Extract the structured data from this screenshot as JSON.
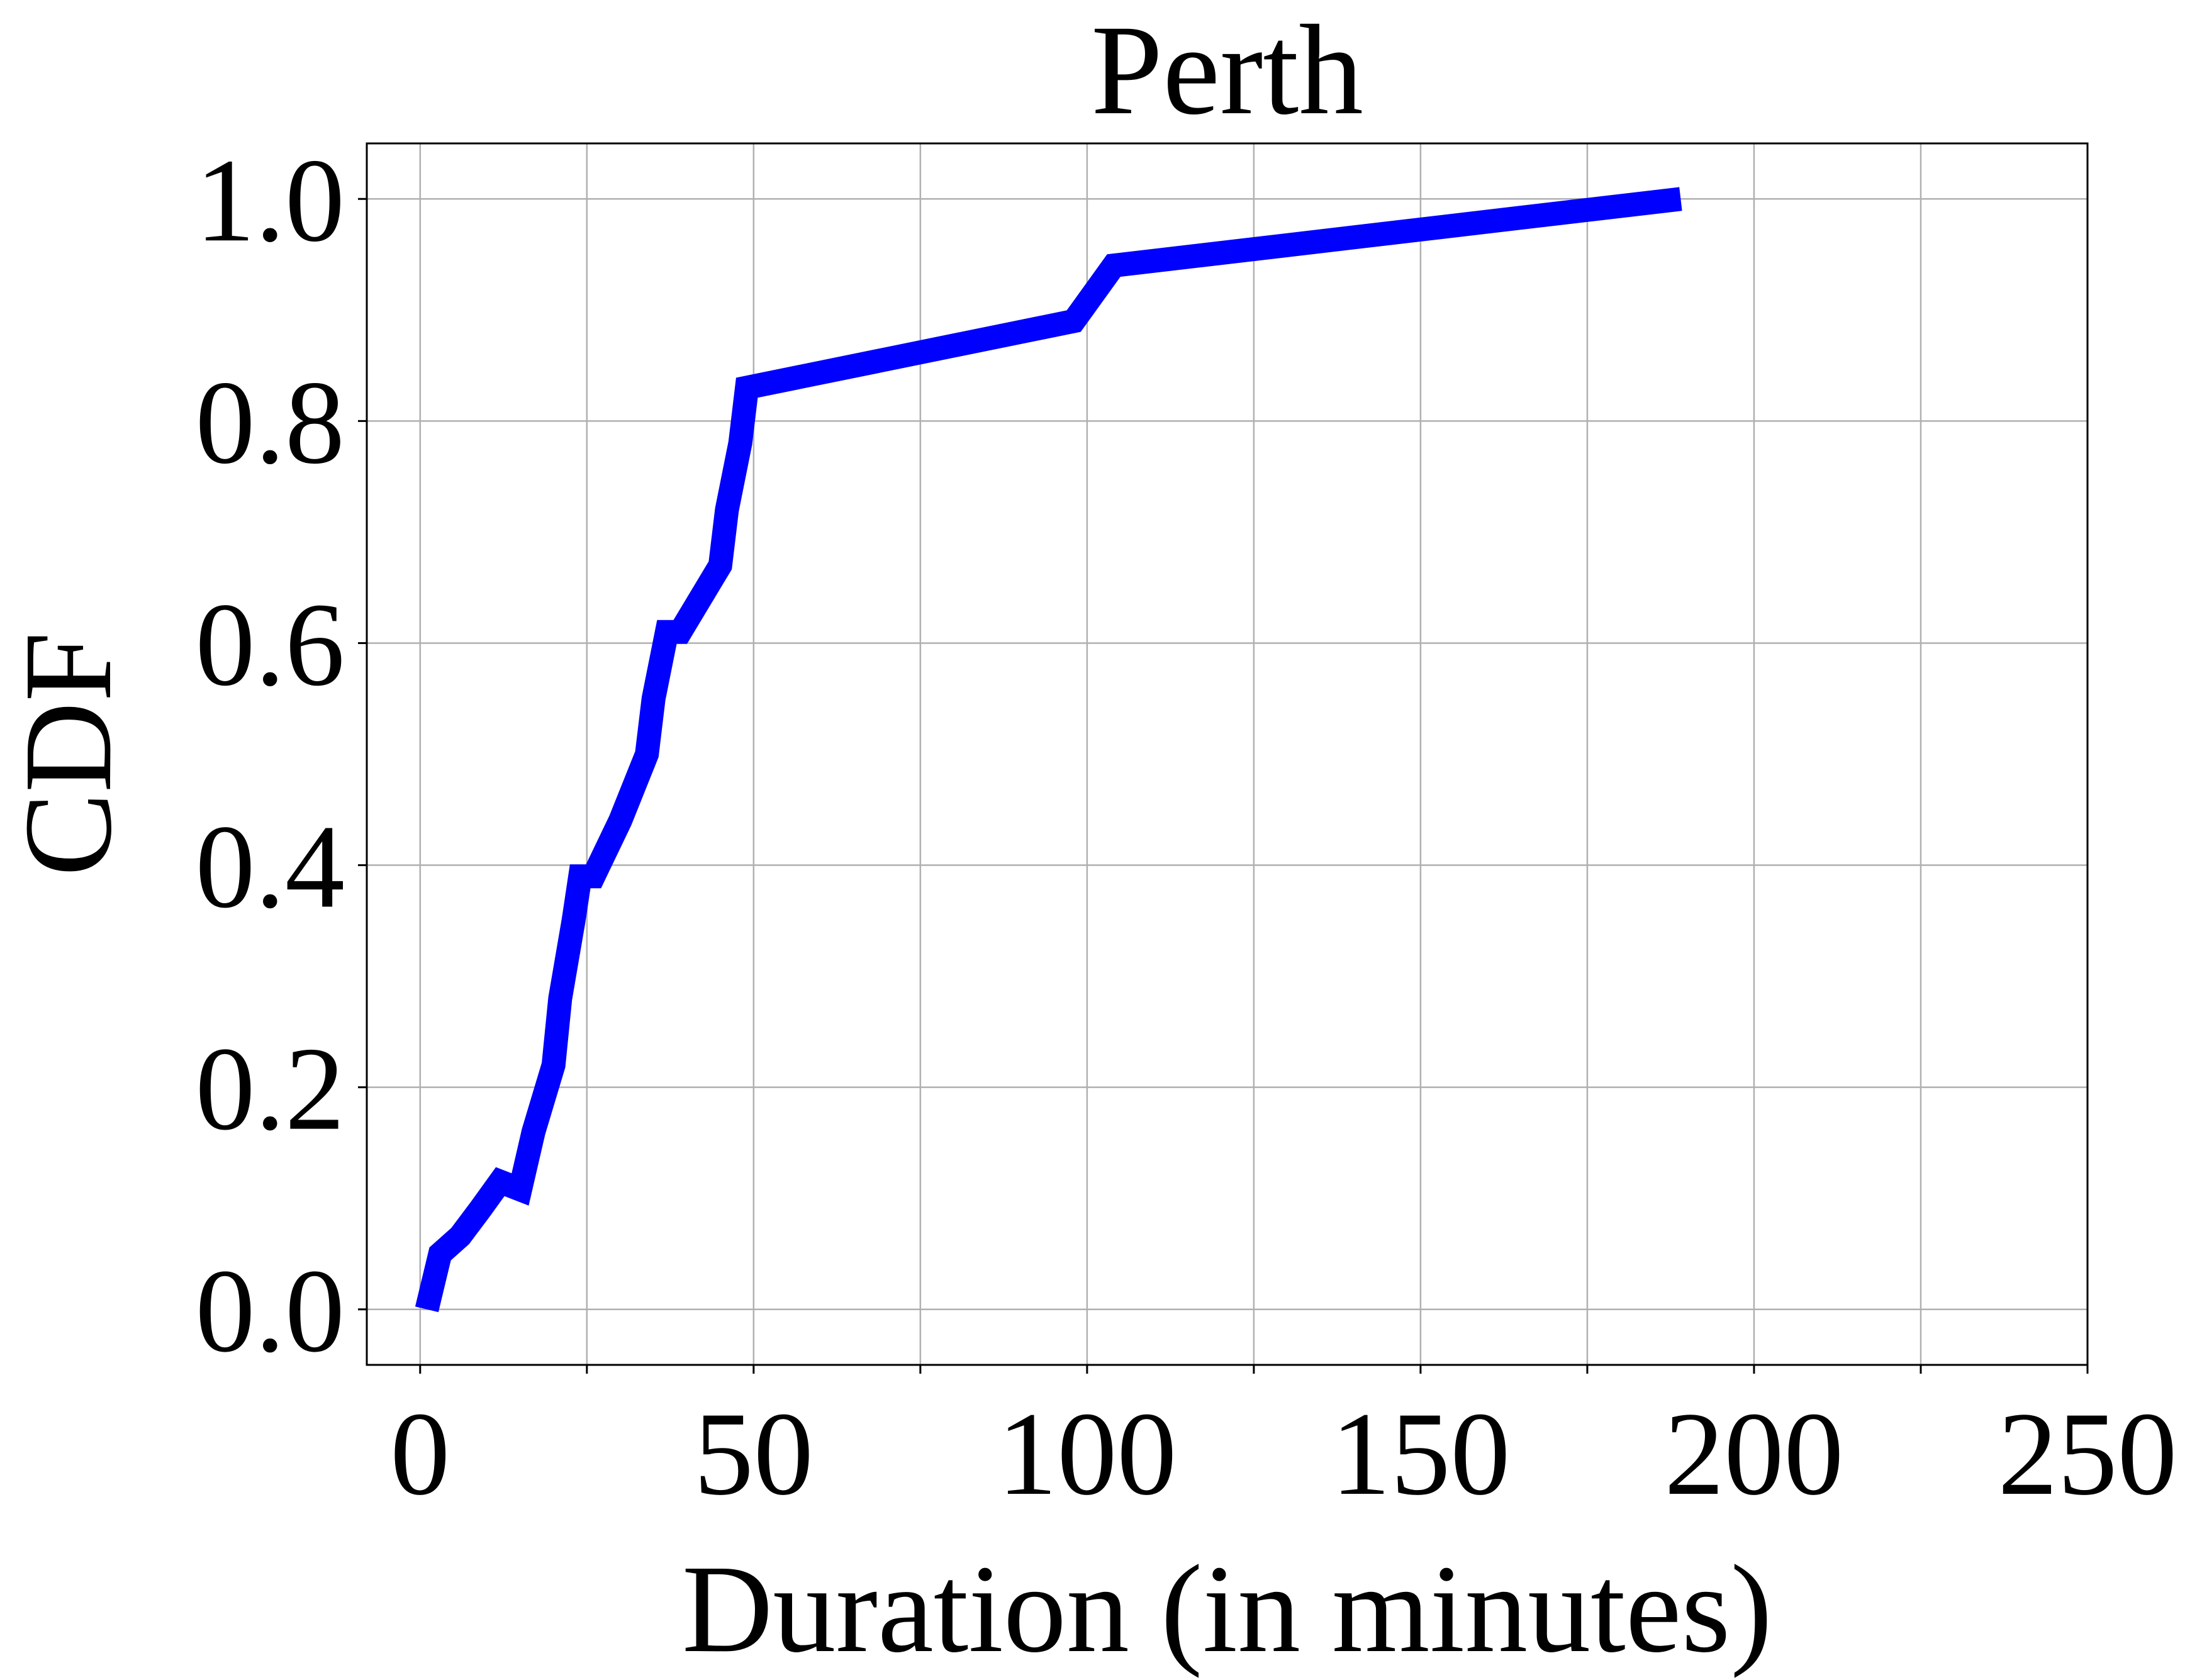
{
  "chart_data": {
    "type": "line",
    "title": "Perth",
    "xlabel": "Duration (in minutes)",
    "ylabel": "CDF",
    "xlim": [
      -8,
      250
    ],
    "ylim": [
      -0.05,
      1.05
    ],
    "xticks": [
      0,
      50,
      100,
      150,
      200,
      250
    ],
    "xtick_labels": [
      "0",
      "50",
      "100",
      "150",
      "200",
      "250"
    ],
    "xticks_minor": [
      25,
      75,
      125,
      175,
      225
    ],
    "yticks": [
      0.0,
      0.2,
      0.4,
      0.6,
      0.8,
      1.0
    ],
    "ytick_labels": [
      "0.0",
      "0.2",
      "0.4",
      "0.6",
      "0.8",
      "1.0"
    ],
    "grid": true,
    "series": [
      {
        "color": "#0000ff",
        "x": [
          1,
          3,
          6,
          9,
          12,
          15,
          17,
          20,
          21,
          23,
          24,
          26,
          30,
          34,
          35,
          37,
          39,
          45,
          46,
          48,
          49,
          98,
          104,
          189
        ],
        "y": [
          0.0,
          0.05,
          0.066,
          0.09,
          0.115,
          0.108,
          0.16,
          0.22,
          0.28,
          0.35,
          0.39,
          0.39,
          0.44,
          0.5,
          0.55,
          0.61,
          0.61,
          0.67,
          0.72,
          0.78,
          0.83,
          0.89,
          0.94,
          1.0
        ]
      }
    ]
  }
}
